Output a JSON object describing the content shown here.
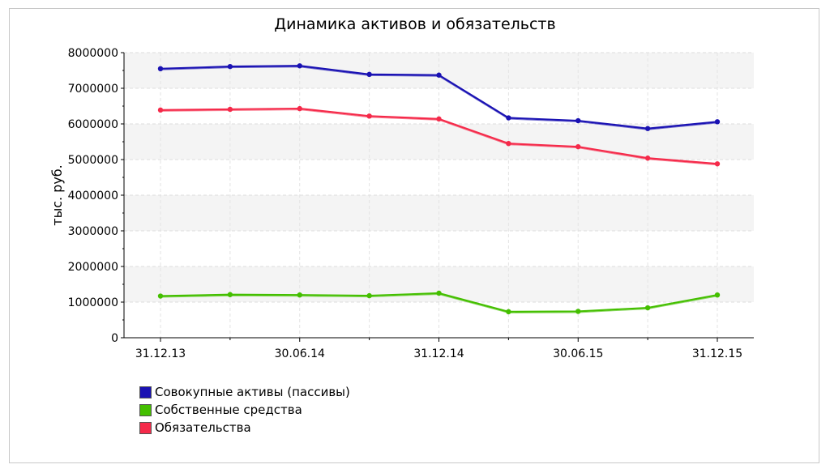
{
  "chart_data": {
    "type": "line",
    "title": "Динамика активов и обязательств",
    "ylabel": "тыс. руб.",
    "xlabel": "",
    "x": [
      "31.12.13",
      "31.03.14",
      "30.06.14",
      "30.09.14",
      "31.12.14",
      "31.03.15",
      "30.06.15",
      "30.09.15",
      "31.12.15"
    ],
    "x_tick_labels": [
      "31.12.13",
      "30.06.14",
      "31.12.14",
      "30.06.15",
      "31.12.15"
    ],
    "ylim": [
      0,
      8000000
    ],
    "y_ticks": [
      0,
      1000000,
      2000000,
      3000000,
      4000000,
      5000000,
      6000000,
      7000000,
      8000000
    ],
    "grid": true,
    "legend_position": "bottom-left",
    "series": [
      {
        "name": "Совокупные активы (пассивы)",
        "color": "#1a12b3",
        "values": [
          7550000,
          7610000,
          7630000,
          7390000,
          7370000,
          6170000,
          6090000,
          5870000,
          6060000
        ]
      },
      {
        "name": "Собственные средства",
        "color": "#44bf00",
        "values": [
          1170000,
          1210000,
          1200000,
          1180000,
          1250000,
          730000,
          740000,
          840000,
          1200000
        ]
      },
      {
        "name": "Обязательства",
        "color": "#f52a4a",
        "values": [
          6390000,
          6410000,
          6430000,
          6220000,
          6140000,
          5450000,
          5360000,
          5040000,
          4880000
        ]
      }
    ]
  }
}
